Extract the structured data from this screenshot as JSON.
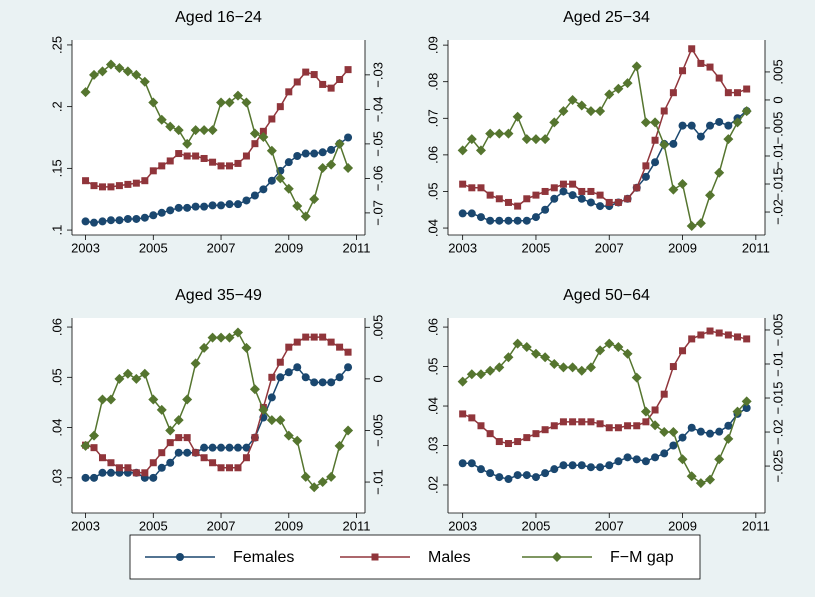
{
  "chart_data": [
    {
      "type": "line",
      "title": "Aged 16−24",
      "x": [
        2003,
        2003.25,
        2003.5,
        2003.75,
        2004,
        2004.25,
        2004.5,
        2004.75,
        2005,
        2005.25,
        2005.5,
        2005.75,
        2006,
        2006.25,
        2006.5,
        2006.75,
        2007,
        2007.25,
        2007.5,
        2007.75,
        2008,
        2008.25,
        2008.5,
        2008.75,
        2009,
        2009.25,
        2009.5,
        2009.75,
        2010,
        2010.25,
        2010.5,
        2010.75
      ],
      "xlim": [
        2002.6,
        2011.25
      ],
      "xticks": [
        2003,
        2005,
        2007,
        2009,
        2011
      ],
      "ylim": [
        0.096,
        0.254
      ],
      "yticks": [
        {
          "value": 0.1,
          "label": ".1"
        },
        {
          "value": 0.15,
          "label": ".15"
        },
        {
          "value": 0.2,
          "label": ".2"
        },
        {
          "value": 0.25,
          "label": ".25"
        }
      ],
      "y2lim": [
        -0.0764,
        -0.0199
      ],
      "y2ticks": [
        {
          "value": -0.07,
          "label": "−.07"
        },
        {
          "value": -0.06,
          "label": "−.06"
        },
        {
          "value": -0.05,
          "label": "−.05"
        },
        {
          "value": -0.04,
          "label": "−.04"
        },
        {
          "value": -0.03,
          "label": "−.03"
        }
      ],
      "series": [
        {
          "name": "Females",
          "color": "#1a476f",
          "marker": "circle",
          "values": [
            0.107,
            0.106,
            0.107,
            0.108,
            0.108,
            0.109,
            0.109,
            0.11,
            0.112,
            0.114,
            0.116,
            0.118,
            0.118,
            0.119,
            0.119,
            0.12,
            0.12,
            0.121,
            0.121,
            0.124,
            0.128,
            0.133,
            0.14,
            0.148,
            0.155,
            0.16,
            0.162,
            0.162,
            0.163,
            0.165,
            0.17,
            0.175
          ]
        },
        {
          "name": "Males",
          "color": "#90353b",
          "marker": "square",
          "values": [
            0.14,
            0.136,
            0.135,
            0.135,
            0.136,
            0.137,
            0.138,
            0.14,
            0.148,
            0.152,
            0.156,
            0.162,
            0.16,
            0.16,
            0.158,
            0.155,
            0.152,
            0.152,
            0.154,
            0.16,
            0.17,
            0.18,
            0.19,
            0.2,
            0.212,
            0.22,
            0.228,
            0.226,
            0.218,
            0.215,
            0.222,
            0.23
          ]
        },
        {
          "name": "F−M gap",
          "color": "#55752f",
          "marker": "diamond",
          "axis": "y2",
          "values": [
            -0.035,
            -0.03,
            -0.029,
            -0.027,
            -0.028,
            -0.029,
            -0.03,
            -0.032,
            -0.038,
            -0.043,
            -0.045,
            -0.046,
            -0.05,
            -0.046,
            -0.046,
            -0.046,
            -0.038,
            -0.038,
            -0.036,
            -0.038,
            -0.047,
            -0.048,
            -0.052,
            -0.06,
            -0.063,
            -0.068,
            -0.071,
            -0.066,
            -0.057,
            -0.056,
            -0.05,
            -0.057
          ]
        }
      ]
    },
    {
      "type": "line",
      "title": "Aged 25−34",
      "x": [
        2003,
        2003.25,
        2003.5,
        2003.75,
        2004,
        2004.25,
        2004.5,
        2004.75,
        2005,
        2005.25,
        2005.5,
        2005.75,
        2006,
        2006.25,
        2006.5,
        2006.75,
        2007,
        2007.25,
        2007.5,
        2007.75,
        2008,
        2008.25,
        2008.5,
        2008.75,
        2009,
        2009.25,
        2009.5,
        2009.75,
        2010,
        2010.25,
        2010.5,
        2010.75
      ],
      "xlim": [
        2002.6,
        2011.25
      ],
      "xticks": [
        2003,
        2005,
        2007,
        2009,
        2011
      ],
      "ylim": [
        0.0381,
        0.0914
      ],
      "yticks": [
        {
          "value": 0.04,
          "label": ".04"
        },
        {
          "value": 0.05,
          "label": ".05"
        },
        {
          "value": 0.06,
          "label": ".06"
        },
        {
          "value": 0.07,
          "label": ".07"
        },
        {
          "value": 0.08,
          "label": ".08"
        },
        {
          "value": 0.09,
          "label": ".09"
        }
      ],
      "y2lim": [
        -0.0241,
        0.0107
      ],
      "y2ticks": [
        {
          "value": -0.02,
          "label": "−.02"
        },
        {
          "value": -0.015,
          "label": "−.015"
        },
        {
          "value": -0.01,
          "label": "−.01"
        },
        {
          "value": -0.005,
          "label": "−.005"
        },
        0,
        {
          "value": 0.005,
          "label": ".005"
        }
      ],
      "series": [
        {
          "name": "Females",
          "color": "#1a476f",
          "marker": "circle",
          "values": [
            0.044,
            0.044,
            0.043,
            0.042,
            0.042,
            0.042,
            0.042,
            0.042,
            0.043,
            0.045,
            0.048,
            0.05,
            0.049,
            0.048,
            0.047,
            0.046,
            0.046,
            0.047,
            0.048,
            0.051,
            0.054,
            0.058,
            0.063,
            0.063,
            0.068,
            0.068,
            0.065,
            0.068,
            0.069,
            0.068,
            0.07,
            0.072
          ]
        },
        {
          "name": "Males",
          "color": "#90353b",
          "marker": "square",
          "values": [
            0.052,
            0.051,
            0.051,
            0.049,
            0.048,
            0.047,
            0.046,
            0.048,
            0.049,
            0.05,
            0.051,
            0.052,
            0.052,
            0.05,
            0.05,
            0.049,
            0.047,
            0.047,
            0.048,
            0.051,
            0.057,
            0.064,
            0.072,
            0.077,
            0.083,
            0.089,
            0.085,
            0.084,
            0.081,
            0.077,
            0.077,
            0.078
          ]
        },
        {
          "name": "F−M gap",
          "color": "#55752f",
          "marker": "diamond",
          "axis": "y2",
          "values": [
            -0.009,
            -0.007,
            -0.009,
            -0.006,
            -0.006,
            -0.006,
            -0.003,
            -0.007,
            -0.007,
            -0.007,
            -0.004,
            -0.002,
            0,
            -0.001,
            -0.002,
            -0.002,
            0.001,
            0.002,
            0.003,
            0.006,
            -0.004,
            -0.004,
            -0.008,
            -0.016,
            -0.015,
            -0.0225,
            -0.022,
            -0.017,
            -0.013,
            -0.007,
            -0.004,
            -0.002
          ]
        }
      ]
    },
    {
      "type": "line",
      "title": "Aged 35−49",
      "x": [
        2003,
        2003.25,
        2003.5,
        2003.75,
        2004,
        2004.25,
        2004.5,
        2004.75,
        2005,
        2005.25,
        2005.5,
        2005.75,
        2006,
        2006.25,
        2006.5,
        2006.75,
        2007,
        2007.25,
        2007.5,
        2007.75,
        2008,
        2008.25,
        2008.5,
        2008.75,
        2009,
        2009.25,
        2009.5,
        2009.75,
        2010,
        2010.25,
        2010.5,
        2010.75
      ],
      "xlim": [
        2002.6,
        2011.25
      ],
      "xticks": [
        2003,
        2005,
        2007,
        2009,
        2011
      ],
      "ylim": [
        0.023,
        0.0618
      ],
      "yticks": [
        {
          "value": 0.03,
          "label": ".03"
        },
        {
          "value": 0.04,
          "label": ".04"
        },
        {
          "value": 0.05,
          "label": ".05"
        },
        {
          "value": 0.06,
          "label": ".06"
        }
      ],
      "y2lim": [
        -0.013,
        0.0059
      ],
      "y2ticks": [
        {
          "value": -0.01,
          "label": "−.01"
        },
        {
          "value": -0.005,
          "label": "−.005"
        },
        0,
        {
          "value": 0.005,
          "label": ".005"
        }
      ],
      "series": [
        {
          "name": "Females",
          "color": "#1a476f",
          "marker": "circle",
          "values": [
            0.03,
            0.03,
            0.031,
            0.031,
            0.031,
            0.031,
            0.031,
            0.03,
            0.03,
            0.032,
            0.033,
            0.035,
            0.035,
            0.035,
            0.036,
            0.036,
            0.036,
            0.036,
            0.036,
            0.036,
            0.038,
            0.042,
            0.046,
            0.05,
            0.051,
            0.052,
            0.05,
            0.049,
            0.049,
            0.049,
            0.05,
            0.052
          ]
        },
        {
          "name": "Males",
          "color": "#90353b",
          "marker": "square",
          "values": [
            0.0365,
            0.036,
            0.034,
            0.033,
            0.032,
            0.032,
            0.031,
            0.031,
            0.033,
            0.035,
            0.037,
            0.038,
            0.038,
            0.035,
            0.034,
            0.033,
            0.032,
            0.032,
            0.032,
            0.034,
            0.038,
            0.044,
            0.05,
            0.053,
            0.056,
            0.057,
            0.058,
            0.058,
            0.058,
            0.057,
            0.056,
            0.055
          ]
        },
        {
          "name": "F−M gap",
          "color": "#55752f",
          "marker": "diamond",
          "axis": "y2",
          "values": [
            -0.0065,
            -0.0055,
            -0.002,
            -0.002,
            0,
            0.0005,
            0,
            0.0005,
            -0.002,
            -0.003,
            -0.005,
            -0.004,
            -0.002,
            0.0015,
            0.003,
            0.004,
            0.004,
            0.004,
            0.0045,
            0.003,
            -0.001,
            -0.003,
            -0.004,
            -0.004,
            -0.0055,
            -0.006,
            -0.0095,
            -0.0105,
            -0.01,
            -0.0095,
            -0.0065,
            -0.005
          ]
        }
      ]
    },
    {
      "type": "line",
      "title": "Aged 50−64",
      "x": [
        2003,
        2003.25,
        2003.5,
        2003.75,
        2004,
        2004.25,
        2004.5,
        2004.75,
        2005,
        2005.25,
        2005.5,
        2005.75,
        2006,
        2006.25,
        2006.5,
        2006.75,
        2007,
        2007.25,
        2007.5,
        2007.75,
        2008,
        2008.25,
        2008.5,
        2008.75,
        2009,
        2009.25,
        2009.5,
        2009.75,
        2010,
        2010.25,
        2010.5,
        2010.75
      ],
      "xlim": [
        2002.6,
        2011.25
      ],
      "xticks": [
        2003,
        2005,
        2007,
        2009,
        2011
      ],
      "ylim": [
        0.0129,
        0.0623
      ],
      "yticks": [
        {
          "value": 0.02,
          "label": ".02"
        },
        {
          "value": 0.03,
          "label": ".03"
        },
        {
          "value": 0.04,
          "label": ".04"
        },
        {
          "value": 0.05,
          "label": ".05"
        },
        {
          "value": 0.06,
          "label": ".06"
        }
      ],
      "y2lim": [
        -0.0319,
        -0.00324
      ],
      "y2ticks": [
        {
          "value": -0.025,
          "label": "−.025"
        },
        {
          "value": -0.02,
          "label": "−.02"
        },
        {
          "value": -0.015,
          "label": "−.015"
        },
        {
          "value": -0.01,
          "label": "−.01"
        },
        {
          "value": -0.005,
          "label": "−.005"
        }
      ],
      "series": [
        {
          "name": "Females",
          "color": "#1a476f",
          "marker": "circle",
          "values": [
            0.0255,
            0.0255,
            0.024,
            0.023,
            0.022,
            0.0215,
            0.0225,
            0.0225,
            0.022,
            0.023,
            0.024,
            0.025,
            0.025,
            0.025,
            0.0245,
            0.0245,
            0.025,
            0.026,
            0.027,
            0.0265,
            0.026,
            0.027,
            0.028,
            0.03,
            0.032,
            0.0345,
            0.0335,
            0.033,
            0.0335,
            0.035,
            0.038,
            0.0395
          ]
        },
        {
          "name": "Males",
          "color": "#90353b",
          "marker": "square",
          "values": [
            0.038,
            0.037,
            0.035,
            0.033,
            0.031,
            0.0305,
            0.031,
            0.032,
            0.033,
            0.034,
            0.035,
            0.036,
            0.036,
            0.036,
            0.036,
            0.0355,
            0.0345,
            0.0345,
            0.035,
            0.035,
            0.036,
            0.039,
            0.043,
            0.05,
            0.054,
            0.057,
            0.058,
            0.059,
            0.0585,
            0.058,
            0.0575,
            0.057
          ]
        },
        {
          "name": "F−M gap",
          "color": "#55752f",
          "marker": "diamond",
          "axis": "y2",
          "values": [
            -0.0126,
            -0.0115,
            -0.0115,
            -0.011,
            -0.0105,
            -0.009,
            -0.007,
            -0.0075,
            -0.0085,
            -0.009,
            -0.01,
            -0.0105,
            -0.0105,
            -0.011,
            -0.0105,
            -0.008,
            -0.007,
            -0.0075,
            -0.0085,
            -0.012,
            -0.017,
            -0.019,
            -0.02,
            -0.02,
            -0.024,
            -0.0265,
            -0.0275,
            -0.027,
            -0.024,
            -0.021,
            -0.017,
            -0.0155
          ]
        }
      ]
    }
  ]
}
